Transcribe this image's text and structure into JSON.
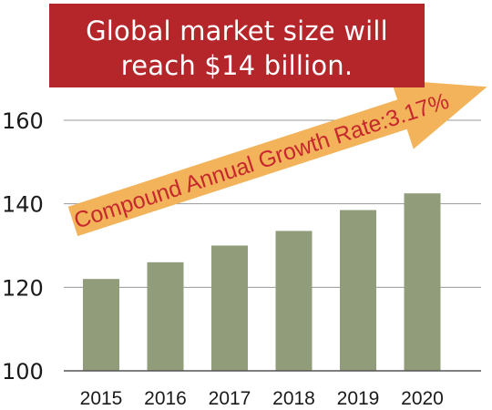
{
  "banner": {
    "line1": "Global market size will",
    "line2": "reach $14 billion.",
    "background": "#b5262b",
    "text_color": "#ffffff"
  },
  "annotation": {
    "text": "Compound Annual Growth Rate:3.17%",
    "arrow_color": "#f2b35a",
    "text_color": "#c6282d"
  },
  "colors": {
    "bar": "#919d7a",
    "grid": "#9a9a9a",
    "axis": "#555555"
  },
  "chart_data": {
    "type": "bar",
    "categories": [
      "2015",
      "2016",
      "2017",
      "2018",
      "2019",
      "2020"
    ],
    "values": [
      122,
      126,
      130,
      133.5,
      138.5,
      142.5
    ],
    "yticks": [
      100,
      120,
      140,
      160
    ],
    "ylim": [
      100,
      160
    ],
    "grid": true,
    "title": "",
    "xlabel": "",
    "ylabel": ""
  }
}
